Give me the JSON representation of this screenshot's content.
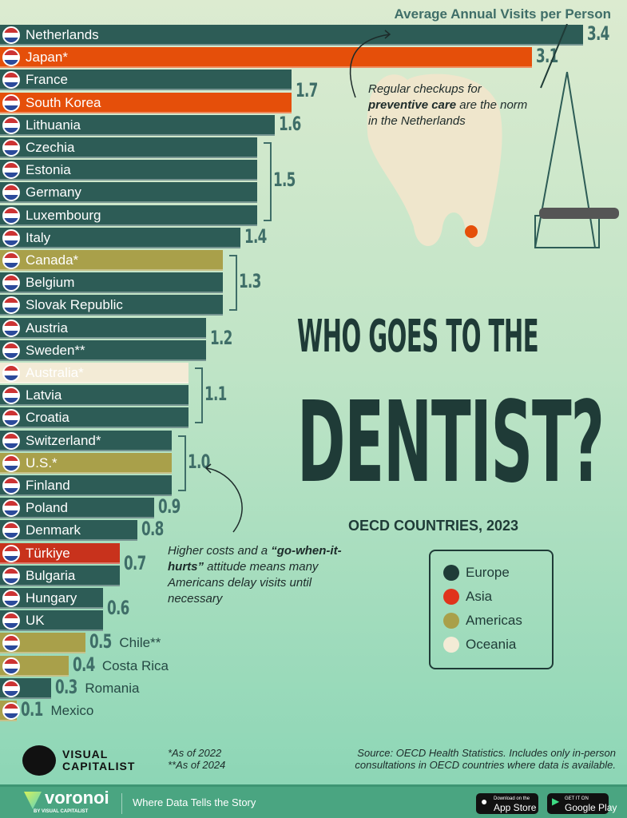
{
  "chart_data": {
    "type": "bar",
    "orientation": "horizontal",
    "title": "Who Goes to the Dentist?",
    "subtitle": "OECD Countries, 2023",
    "xlabel": "Average Annual Visits per Person",
    "xlim": [
      0,
      3.4
    ],
    "grid": false,
    "legend_placement": "right",
    "legend": [
      {
        "name": "Europe",
        "color": "#2d5c56"
      },
      {
        "name": "Asia",
        "color": "#e54f0a"
      },
      {
        "name": "Americas",
        "color": "#a9a04a"
      },
      {
        "name": "Oceania",
        "color": "#f3ebd6"
      }
    ],
    "region_colors": {
      "Europe": "#2d5c56",
      "Asia": "#e54f0a",
      "Americas": "#a9a04a",
      "Oceania": "#f3ebd6"
    },
    "bars": [
      {
        "country": "Netherlands",
        "value": 3.4,
        "region": "Europe",
        "label": "3.4"
      },
      {
        "country": "Japan*",
        "value": 3.1,
        "region": "Asia",
        "label": "3.1"
      },
      {
        "country": "France",
        "value": 1.7,
        "region": "Europe",
        "label": "1.7"
      },
      {
        "country": "South Korea",
        "value": 1.7,
        "region": "Asia",
        "label": "1.7"
      },
      {
        "country": "Lithuania",
        "value": 1.6,
        "region": "Europe",
        "label": "1.6"
      },
      {
        "country": "Czechia",
        "value": 1.5,
        "region": "Europe",
        "label": "1.5"
      },
      {
        "country": "Estonia",
        "value": 1.5,
        "region": "Europe",
        "label": "1.5"
      },
      {
        "country": "Germany",
        "value": 1.5,
        "region": "Europe",
        "label": "1.5"
      },
      {
        "country": "Luxembourg",
        "value": 1.5,
        "region": "Europe",
        "label": "1.5"
      },
      {
        "country": "Italy",
        "value": 1.4,
        "region": "Europe",
        "label": "1.4"
      },
      {
        "country": "Canada*",
        "value": 1.3,
        "region": "Americas",
        "label": "1.3"
      },
      {
        "country": "Belgium",
        "value": 1.3,
        "region": "Europe",
        "label": "1.3"
      },
      {
        "country": "Slovak Republic",
        "value": 1.3,
        "region": "Europe",
        "label": "1.3"
      },
      {
        "country": "Austria",
        "value": 1.2,
        "region": "Europe",
        "label": "1.2"
      },
      {
        "country": "Sweden**",
        "value": 1.2,
        "region": "Europe",
        "label": "1.2"
      },
      {
        "country": "Australia*",
        "value": 1.1,
        "region": "Oceania",
        "label": "1.1"
      },
      {
        "country": "Latvia",
        "value": 1.1,
        "region": "Europe",
        "label": "1.1"
      },
      {
        "country": "Croatia",
        "value": 1.1,
        "region": "Europe",
        "label": "1.1"
      },
      {
        "country": "Switzerland*",
        "value": 1.0,
        "region": "Europe",
        "label": "1.0"
      },
      {
        "country": "U.S.*",
        "value": 1.0,
        "region": "Americas",
        "label": "1.0"
      },
      {
        "country": "Finland",
        "value": 1.0,
        "region": "Europe",
        "label": "1.0"
      },
      {
        "country": "Poland",
        "value": 0.9,
        "region": "Europe",
        "label": "0.9"
      },
      {
        "country": "Denmark",
        "value": 0.8,
        "region": "Europe",
        "label": "0.8"
      },
      {
        "country": "Türkiye",
        "value": 0.7,
        "region": "Asia",
        "label": "0.7"
      },
      {
        "country": "Bulgaria",
        "value": 0.7,
        "region": "Europe",
        "label": "0.7"
      },
      {
        "country": "Hungary",
        "value": 0.6,
        "region": "Europe",
        "label": "0.6"
      },
      {
        "country": "UK",
        "value": 0.6,
        "region": "Europe",
        "label": "0.6"
      },
      {
        "country": "Chile**",
        "value": 0.5,
        "region": "Americas",
        "label": "0.5"
      },
      {
        "country": "Costa Rica",
        "value": 0.4,
        "region": "Americas",
        "label": "0.4"
      },
      {
        "country": "Romania",
        "value": 0.3,
        "region": "Europe",
        "label": "0.3"
      },
      {
        "country": "Mexico",
        "value": 0.1,
        "region": "Americas",
        "label": "0.1"
      }
    ],
    "annotations": {
      "netherlands_pre": "Regular checkups for",
      "netherlands_bold": "preventive care",
      "netherlands_post": "are the norm in the Netherlands",
      "us_pre": "Higher costs and a",
      "us_bold": "“go-when-it-hurts”",
      "us_post": "attitude means many Americans delay visits until necessary"
    }
  },
  "footnotes": {
    "one": "*As of 2022",
    "two": "**As of 2024"
  },
  "source": "Source: OECD Health Statistics. Includes only in-person consultations in OECD countries where data is available.",
  "brand": {
    "logo": "VISUAL CAPITALIST",
    "voronoi": "voronoi",
    "voronoi_sub": "BY VISUAL CAPITALIST",
    "tagline": "Where Data Tells the Story",
    "app_store_small": "Download on the",
    "app_store": "App Store",
    "google_small": "GET IT ON",
    "google": "Google Play"
  }
}
